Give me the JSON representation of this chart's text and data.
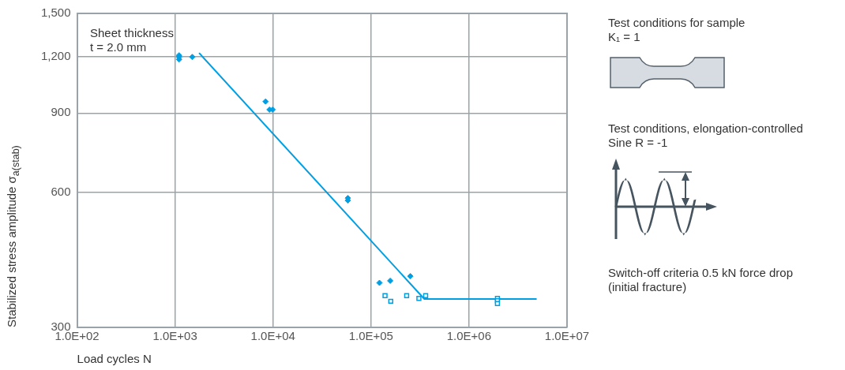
{
  "chart_data": {
    "type": "scatter",
    "xlabel": "Load cycles N",
    "ylabel": "Stabilized stress amplitude σ$_{a(stab)}$",
    "log": "xy",
    "grid": true,
    "legend": false,
    "xlim": [
      100,
      10000000
    ],
    "xticks": [
      {
        "value": 100,
        "label": "1.0E+02"
      },
      {
        "value": 1000,
        "label": "1.0E+03"
      },
      {
        "value": 10000,
        "label": "1.0E+04"
      },
      {
        "value": 100000,
        "label": "1.0E+05"
      },
      {
        "value": 1000000,
        "label": "1.0E+06"
      },
      {
        "value": 10000000,
        "label": "1.0E+07"
      }
    ],
    "ylim": [
      300,
      1500
    ],
    "yticks": [
      {
        "value": 300,
        "label": "300"
      },
      {
        "value": 600,
        "label": "600"
      },
      {
        "value": 900,
        "label": "900"
      },
      {
        "value": 1200,
        "label": "1,200"
      },
      {
        "value": 1500,
        "label": "1,500"
      }
    ],
    "series": [
      {
        "type": "scatter",
        "marker": "diamond",
        "color": "#009fe3",
        "x": [
          1100,
          1100,
          1100,
          1500,
          8400,
          9200,
          9900,
          58000,
          58000,
          122000,
          157000,
          252000
        ],
        "values": [
          1210,
          1200,
          1185,
          1200,
          955,
          916,
          916,
          582,
          575,
          377,
          381,
          390
        ]
      },
      {
        "type": "scatter",
        "marker": "square",
        "color": "#009fe3",
        "x": [
          139000,
          159000,
          231000,
          308000,
          361000,
          1950000,
          1950000,
          1950000
        ],
        "values": [
          353,
          343,
          353,
          348,
          353,
          348,
          344,
          339
        ]
      },
      {
        "type": "line",
        "marker": "none",
        "color": "#009fe3",
        "x": [
          1760,
          350000,
          4900000
        ],
        "values": [
          1225,
          347,
          347
        ]
      }
    ],
    "annotations": [
      "Sheet thickness\nt = 2.0 mm",
      "Test conditions for sample\nK₁ = 1",
      "Test conditions, elongation-controlled\nSine R = -1",
      "Switch-off criteria 0.5 kN force drop\n(initial fracture)"
    ]
  }
}
